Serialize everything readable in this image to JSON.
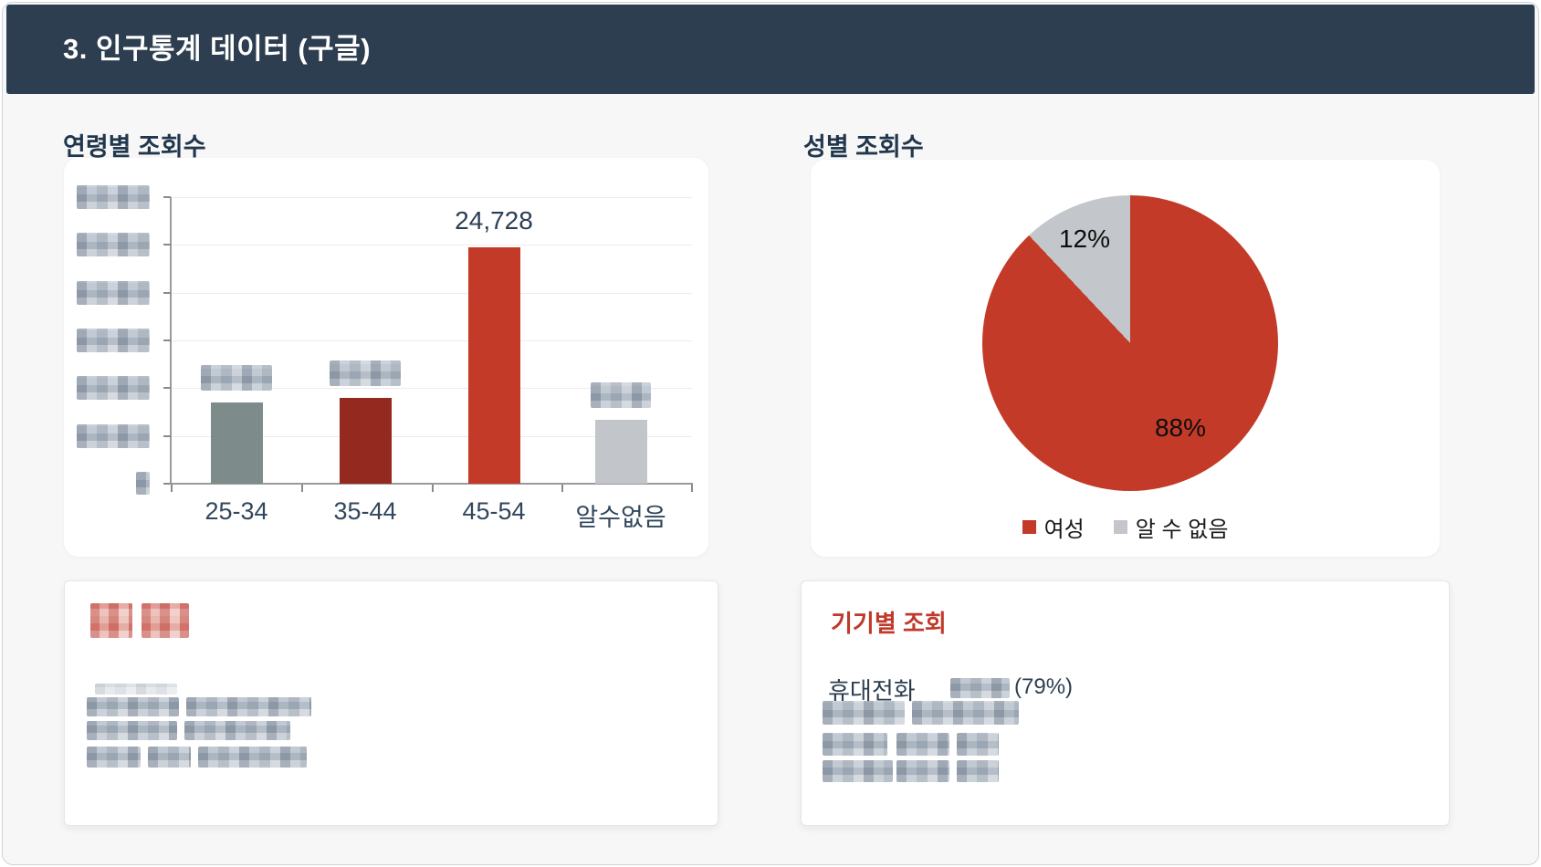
{
  "header": {
    "title": "3. 인구통계 데이터 (구글)"
  },
  "age_section": {
    "title": "연령별 조회수"
  },
  "gender_section": {
    "title": "성별 조회수"
  },
  "chart_data": [
    {
      "type": "bar",
      "title": "연령별 조회수",
      "categories": [
        "25-34",
        "35-44",
        "45-54",
        "알수없음"
      ],
      "values": [
        8500,
        9000,
        24728,
        6700
      ],
      "value_labels": [
        "",
        "",
        "24,728",
        ""
      ],
      "value_labels_redacted": [
        true,
        true,
        false,
        true
      ],
      "bar_colors": [
        "#7e8b8b",
        "#93291f",
        "#c33a28",
        "#c2c6ca"
      ],
      "xlabel": "",
      "ylabel": "",
      "ylim": [
        0,
        30000
      ],
      "ytick_step": 5000,
      "ytick_labels_redacted": true,
      "grid": true,
      "legend_position": "none"
    },
    {
      "type": "pie",
      "title": "성별 조회수",
      "labels": [
        "여성",
        "알 수 없음"
      ],
      "values": [
        88,
        12
      ],
      "slice_labels": [
        "88%",
        "12%"
      ],
      "colors": [
        "#c33a28",
        "#c3c7cb"
      ],
      "legend": [
        "여성",
        "알 수 없음"
      ],
      "legend_position": "bottom"
    }
  ],
  "note_card": {
    "title_redacted": true,
    "redacted_line_count": 4
  },
  "device_card": {
    "title": "기기별 조회",
    "device_label": "휴대전화",
    "device_share": "(79%)",
    "redacted_line_count": 3
  },
  "colors": {
    "header_bg": "#2d3e50",
    "accent_red": "#c33a28",
    "dark_red": "#93291f",
    "slate_gray": "#7e8b8b",
    "light_gray": "#c2c6ca",
    "page_bg": "#f8f7f7",
    "title_text": "#21374d"
  }
}
